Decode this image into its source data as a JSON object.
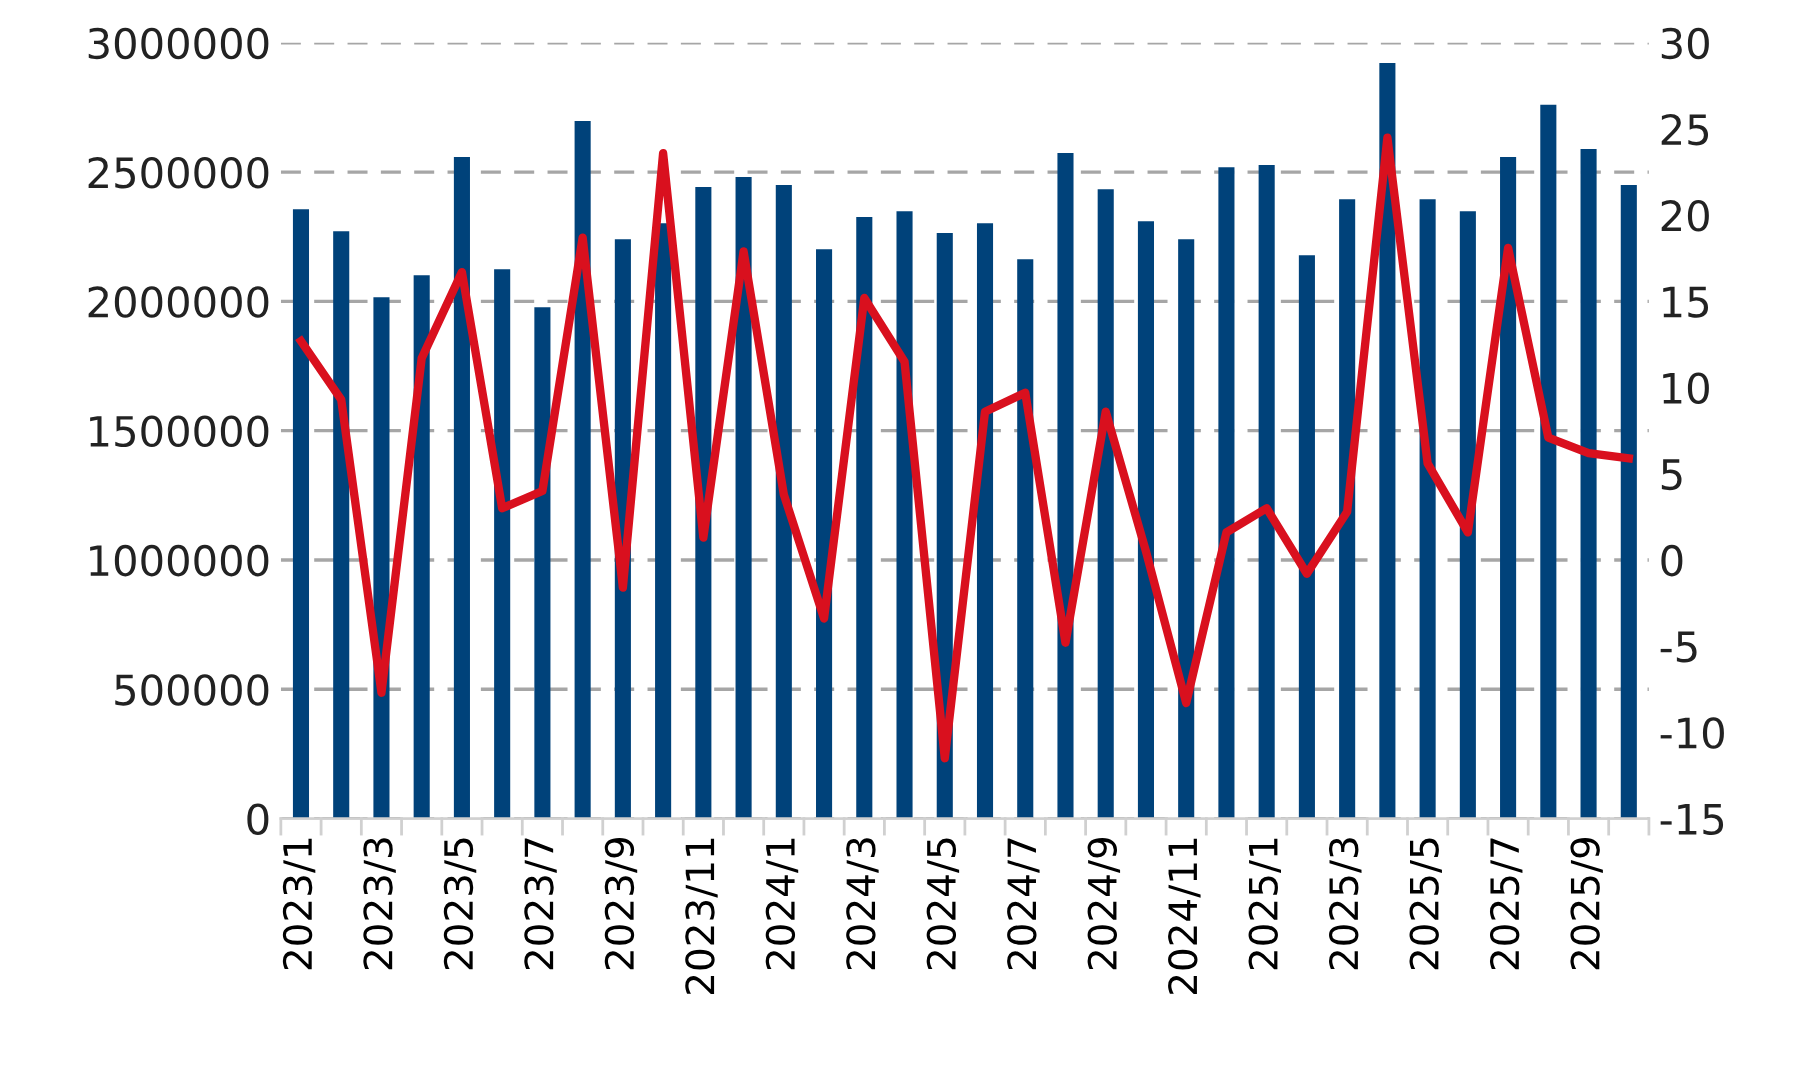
{
  "chart_data": {
    "type": "bar",
    "categories": [
      "2023/1",
      null,
      "2023/3",
      null,
      "2023/5",
      null,
      "2023/7",
      null,
      "2023/9",
      null,
      "2023/11",
      null,
      "2024/1",
      null,
      "2024/3",
      null,
      "2024/5",
      null,
      "2024/7",
      null,
      "2024/9",
      null,
      "2024/11",
      null,
      "2025/1",
      null,
      "2025/3",
      null,
      "2025/5",
      null,
      "2025/7",
      null,
      "2025/9",
      null
    ],
    "series": [
      {
        "color": "#00427a",
        "values": [
          2356000,
          2271000,
          2016000,
          2101000,
          2558000,
          2124000,
          1977000,
          2698000,
          2240000,
          2302000,
          2442000,
          2481000,
          2450000,
          2202000,
          2326000,
          2349000,
          2264000,
          2302000,
          2163000,
          2574000,
          2434000,
          2310000,
          2240000,
          2519000,
          2527000,
          2178000,
          2395000,
          2922000,
          2395000,
          2349000,
          2558000,
          2760000,
          2589000,
          2450000
        ]
      },
      {
        "type": "line",
        "axis": "y2",
        "color": "#d9101e",
        "values": [
          12.7,
          9.3,
          -7.7,
          11.7,
          16.7,
          3.0,
          4.0,
          18.7,
          -1.6,
          23.6,
          1.3,
          17.9,
          3.8,
          -3.4,
          15.2,
          11.5,
          -11.5,
          8.6,
          9.7,
          -4.8,
          8.6,
          0.5,
          -8.3,
          1.6,
          3.0,
          -0.8,
          2.8,
          24.5,
          5.6,
          1.6,
          18.1,
          7.1,
          6.2,
          5.9
        ]
      }
    ],
    "ylim": [
      0,
      3000000
    ],
    "yticks": [
      0,
      500000,
      1000000,
      1500000,
      2000000,
      2500000,
      3000000
    ],
    "y2lim": [
      -15,
      30
    ],
    "y2ticks": [
      -15,
      -10,
      -5,
      0,
      5,
      10,
      15,
      20,
      25,
      30
    ],
    "grid": "y",
    "line_style": "solid",
    "marker": "none"
  }
}
